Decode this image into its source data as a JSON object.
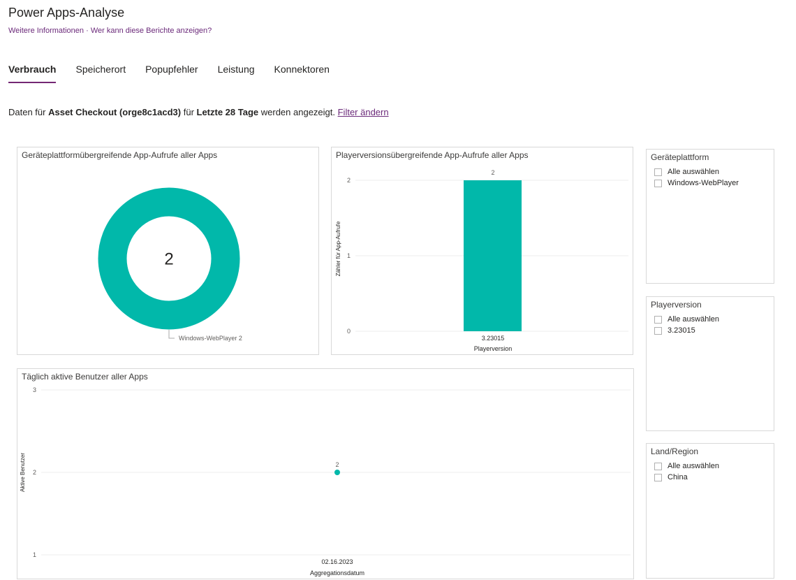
{
  "header": {
    "title": "Power Apps-Analyse",
    "more_info": "Weitere Informationen",
    "separator": "·",
    "who_can_see": "Wer kann diese Berichte anzeigen?"
  },
  "tabs": [
    {
      "label": "Verbrauch",
      "active": true
    },
    {
      "label": "Speicherort",
      "active": false
    },
    {
      "label": "Popupfehler",
      "active": false
    },
    {
      "label": "Leistung",
      "active": false
    },
    {
      "label": "Konnektoren",
      "active": false
    }
  ],
  "info": {
    "prefix": "Daten für ",
    "app": "Asset Checkout (orge8c1acd3)",
    "mid": " für ",
    "range": "Letzte 28 Tage",
    "suffix": " werden angezeigt. ",
    "filter_link": "Filter ändern"
  },
  "donut": {
    "title": "Geräteplattformübergreifende App-Aufrufe aller Apps",
    "center_value": "2",
    "legend_label": "Windows-WebPlayer 2"
  },
  "bar": {
    "title": "Playerversionsübergreifende App-Aufrufe aller Apps",
    "ylabel": "Zähler für App-Aufrufe",
    "xlabel": "Playerversion",
    "y_ticks": [
      "2",
      "1",
      "0"
    ],
    "data_label": "2",
    "category": "3.23015"
  },
  "line": {
    "title": "Täglich aktive Benutzer aller Apps",
    "ylabel": "Aktive Benutzer",
    "xlabel": "Aggregationsdatum",
    "y_ticks": [
      "3",
      "2",
      "1"
    ],
    "data_label": "2",
    "x_tick": "02.16.2023"
  },
  "slicers": {
    "platform": {
      "title": "Geräteplattform",
      "items": [
        "Alle auswählen",
        "Windows-WebPlayer"
      ]
    },
    "player": {
      "title": "Playerversion",
      "items": [
        "Alle auswählen",
        "3.23015"
      ]
    },
    "region": {
      "title": "Land/Region",
      "items": [
        "Alle auswählen",
        "China"
      ]
    }
  },
  "colors": {
    "accent": "#01b8aa",
    "tab_underline": "#742774",
    "link": "#6b2a7a"
  },
  "chart_data": [
    {
      "type": "pie",
      "title": "Geräteplattformübergreifende App-Aufrufe aller Apps",
      "categories": [
        "Windows-WebPlayer"
      ],
      "values": [
        2
      ]
    },
    {
      "type": "bar",
      "title": "Playerversionsübergreifende App-Aufrufe aller Apps",
      "categories": [
        "3.23015"
      ],
      "values": [
        2
      ],
      "xlabel": "Playerversion",
      "ylabel": "Zähler für App-Aufrufe",
      "ylim": [
        0,
        2
      ]
    },
    {
      "type": "scatter",
      "title": "Täglich aktive Benutzer aller Apps",
      "x": [
        "02.16.2023"
      ],
      "y": [
        2
      ],
      "xlabel": "Aggregationsdatum",
      "ylabel": "Aktive Benutzer",
      "ylim": [
        1,
        3
      ]
    }
  ]
}
